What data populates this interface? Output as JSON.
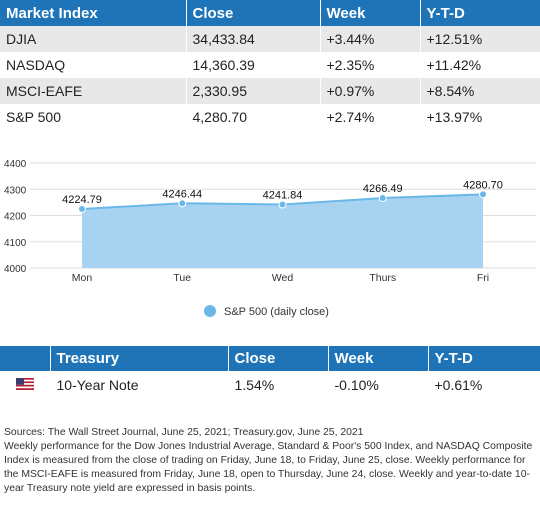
{
  "market_table": {
    "headers": [
      "Market Index",
      "Close",
      "Week",
      "Y-T-D"
    ],
    "rows": [
      {
        "index": "DJIA",
        "close": "34,433.84",
        "week": "+3.44%",
        "ytd": "+12.51%"
      },
      {
        "index": "NASDAQ",
        "close": "14,360.39",
        "week": "+2.35%",
        "ytd": "+11.42%"
      },
      {
        "index": "MSCI-EAFE",
        "close": "2,330.95",
        "week": "+0.97%",
        "ytd": "+8.54%"
      },
      {
        "index": "S&P 500",
        "close": "4,280.70",
        "week": "+2.74%",
        "ytd": "+13.97%"
      }
    ]
  },
  "chart_data": {
    "type": "area",
    "categories": [
      "Mon",
      "Tue",
      "Wed",
      "Thurs",
      "Fri"
    ],
    "series": [
      {
        "name": "S&P 500 (daily close)",
        "values": [
          4224.79,
          4246.44,
          4241.84,
          4266.49,
          4280.7
        ]
      }
    ],
    "data_labels": [
      "4224.79",
      "4246.44",
      "4241.84",
      "4266.49",
      "4280.70"
    ],
    "ylim": [
      4000,
      4400
    ],
    "yticks": [
      4000,
      4100,
      4200,
      4300,
      4400
    ],
    "grid": true,
    "legend": "bottom-center",
    "colors": {
      "fill": "#a8d3f0",
      "line": "#6ab8e8",
      "marker": "#6ab8e8",
      "legend_marker": "#6ab8e8"
    }
  },
  "treasury_table": {
    "headers": [
      "Treasury",
      "Close",
      "Week",
      "Y-T-D"
    ],
    "rows": [
      {
        "flag_icon": "us-flag-icon",
        "name": "10-Year Note",
        "close": "1.54%",
        "week": "-0.10%",
        "ytd": "+0.61%"
      }
    ]
  },
  "notes": [
    "Sources: The Wall Street Journal, June 25, 2021; Treasury.gov, June 25, 2021",
    "Weekly performance for the Dow Jones Industrial Average, Standard & Poor's 500 Index, and NASDAQ Composite Index is measured from the close of trading on Friday, June 18, to Friday, June 25, close. Weekly performance for the MSCI-EAFE is measured from Friday, June 18, open to Thursday, June 24, close. Weekly and year-to-date 10-year Treasury note yield are expressed in basis points."
  ],
  "theme": {
    "header_bg": "#1e74b7",
    "row_alt_bg": "#e8e8e8"
  }
}
